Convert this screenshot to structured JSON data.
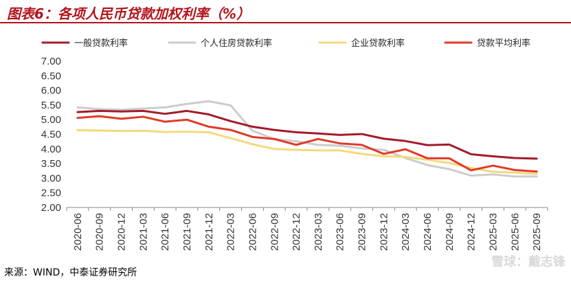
{
  "figure": {
    "title": "图表6：各项人民币贷款加权利率（%）",
    "source": "来源：WIND，中泰证券研究所",
    "watermark": "雪球：戴志锋"
  },
  "chart_data": {
    "type": "line",
    "title": "图表6：各项人民币贷款加权利率（%）",
    "xlabel": "",
    "ylabel": "",
    "ylim": [
      2.0,
      7.0
    ],
    "yticks": [
      "2.00",
      "2.50",
      "3.00",
      "3.50",
      "4.00",
      "4.50",
      "5.00",
      "5.50",
      "6.00",
      "6.50",
      "7.00"
    ],
    "grid": false,
    "legend_position": "top",
    "x": [
      "2020-06",
      "2020-09",
      "2020-12",
      "2021-03",
      "2021-06",
      "2021-09",
      "2021-12",
      "2022-03",
      "2022-06",
      "2022-09",
      "2022-12",
      "2023-03",
      "2023-06",
      "2023-09",
      "2023-12",
      "2024-03",
      "2024-06",
      "2024-09",
      "2024-12",
      "2025-03",
      "2025-06",
      "2025-09"
    ],
    "series": [
      {
        "name": "一般贷款利率",
        "color": "#a31b2a",
        "values": [
          5.26,
          5.3,
          5.28,
          5.3,
          5.2,
          5.3,
          5.18,
          4.95,
          4.76,
          4.65,
          4.57,
          4.53,
          4.48,
          4.51,
          4.35,
          4.27,
          4.13,
          4.15,
          3.82,
          3.75,
          3.69,
          3.67
        ]
      },
      {
        "name": "个人住房贷款利率",
        "color": "#cccccc",
        "values": [
          5.42,
          5.36,
          5.34,
          5.38,
          5.42,
          5.54,
          5.63,
          5.49,
          4.62,
          4.34,
          4.26,
          4.14,
          4.11,
          4.02,
          3.97,
          3.69,
          3.45,
          3.31,
          3.09,
          3.13,
          3.06,
          3.06
        ]
      },
      {
        "name": "企业贷款利率",
        "color": "#f4d97a",
        "values": [
          4.64,
          4.63,
          4.61,
          4.62,
          4.58,
          4.59,
          4.57,
          4.37,
          4.16,
          4.0,
          3.97,
          3.95,
          3.95,
          3.83,
          3.75,
          3.73,
          3.63,
          3.52,
          3.35,
          3.22,
          3.19,
          3.15
        ]
      },
      {
        "name": "贷款平均利率",
        "color": "#e03a27",
        "values": [
          5.06,
          5.12,
          5.03,
          5.1,
          4.93,
          5.0,
          4.76,
          4.65,
          4.41,
          4.34,
          4.14,
          4.34,
          4.19,
          4.14,
          3.83,
          3.99,
          3.68,
          3.68,
          3.27,
          3.43,
          3.28,
          3.23
        ]
      }
    ]
  }
}
